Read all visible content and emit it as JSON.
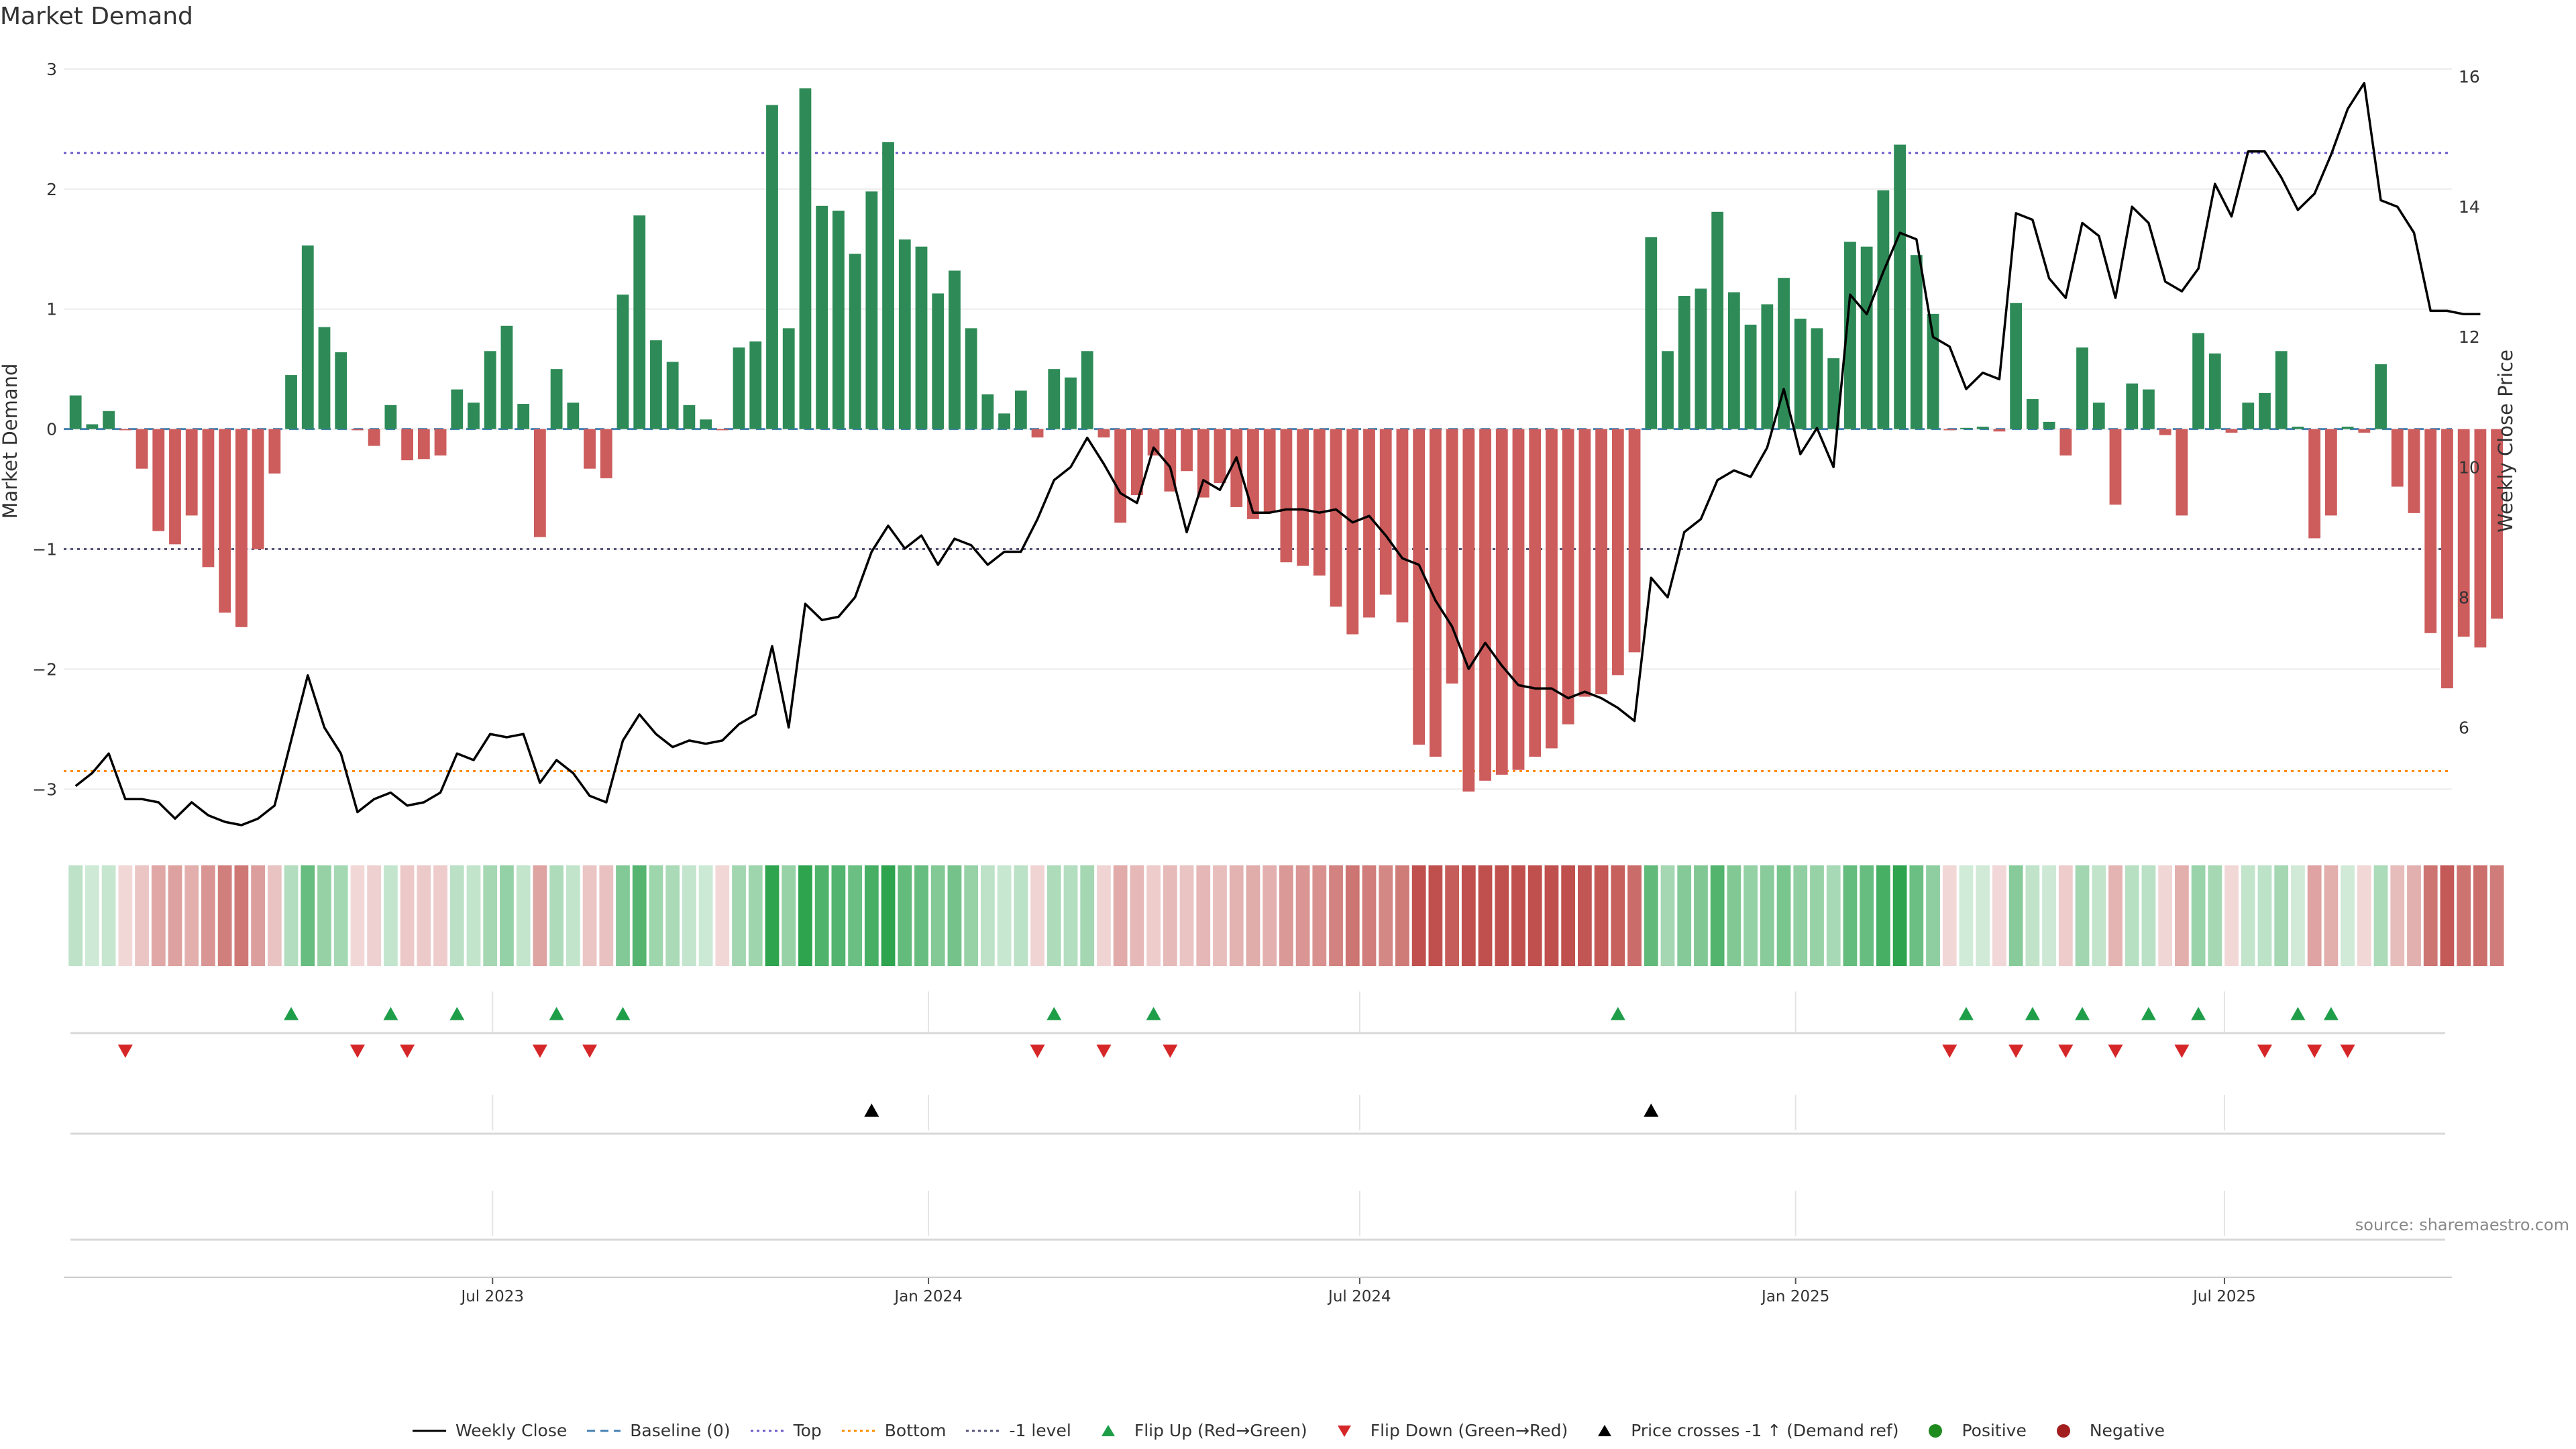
{
  "title": "Market Demand",
  "source": "source: sharemaestro.com",
  "colors": {
    "positive_bar": "#2e8b57",
    "negative_bar": "#cd5c5c",
    "price_line": "#000000",
    "top_line": "#6a5acd",
    "bottom_line": "#ff8c00",
    "minus1_line": "#555577",
    "baseline": "#4682b4",
    "flip_up": "#1f9e4a",
    "flip_down": "#d62728",
    "cross": "#000000",
    "positive_dot": "#1f8b1f",
    "negative_dot": "#a31f1f"
  },
  "legend": [
    {
      "label": "Weekly Close",
      "icon": "solid-line"
    },
    {
      "label": "Baseline (0)",
      "icon": "dashed-line"
    },
    {
      "label": "Top",
      "icon": "dotted-line-purple"
    },
    {
      "label": "Bottom",
      "icon": "dotted-line-orange"
    },
    {
      "label": "-1 level",
      "icon": "dotted-line-gray"
    },
    {
      "label": "Flip Up (Red→Green)",
      "icon": "triangle-up-green"
    },
    {
      "label": "Flip Down (Green→Red)",
      "icon": "triangle-down-red"
    },
    {
      "label": "Price crosses -1 ↑ (Demand ref)",
      "icon": "triangle-up-black"
    },
    {
      "label": "Positive",
      "icon": "dot-green"
    },
    {
      "label": "Negative",
      "icon": "dot-red"
    }
  ],
  "chart_data": {
    "type": "bar",
    "start_date": "2023-01-06",
    "frequency": "weekly",
    "ylabel": "Market Demand",
    "y2label": "Weekly Close Price",
    "ylim": [
      -3.3,
      3.1
    ],
    "y2lim": [
      4.5,
      16.3
    ],
    "yticks": [
      3,
      2,
      1,
      0,
      -1,
      -2,
      -3
    ],
    "y2ticks": [
      16,
      14,
      12,
      10,
      8,
      6
    ],
    "xticks": [
      "Jul 2023",
      "Jan 2024",
      "Jul 2024",
      "Jan 2025",
      "Jul 2025"
    ],
    "top_level": 2.3,
    "bottom_level": -2.85,
    "minus1_level": -1.0,
    "demand": [
      0.28,
      0.04,
      0.15,
      -0.01,
      -0.33,
      -0.85,
      -0.96,
      -0.72,
      -1.15,
      -1.53,
      -1.65,
      -1.0,
      -0.37,
      0.45,
      1.53,
      0.85,
      0.64,
      -0.01,
      -0.14,
      0.2,
      -0.26,
      -0.25,
      -0.22,
      0.33,
      0.22,
      0.65,
      0.86,
      0.21,
      -0.9,
      0.5,
      0.22,
      -0.33,
      -0.41,
      1.12,
      1.78,
      0.74,
      0.56,
      0.2,
      0.08,
      -0.01,
      0.68,
      0.73,
      2.7,
      0.84,
      2.84,
      1.86,
      1.82,
      1.46,
      1.98,
      2.39,
      1.58,
      1.52,
      1.13,
      1.32,
      0.84,
      0.29,
      0.13,
      0.32,
      -0.07,
      0.5,
      0.43,
      0.65,
      -0.07,
      -0.78,
      -0.55,
      -0.22,
      -0.52,
      -0.35,
      -0.57,
      -0.45,
      -0.65,
      -0.75,
      -0.69,
      -1.11,
      -1.14,
      -1.22,
      -1.48,
      -1.71,
      -1.57,
      -1.38,
      -1.61,
      -2.63,
      -2.73,
      -2.12,
      -3.02,
      -2.93,
      -2.88,
      -2.84,
      -2.73,
      -2.66,
      -2.46,
      -2.23,
      -2.21,
      -2.05,
      -1.86,
      1.6,
      0.65,
      1.11,
      1.17,
      1.81,
      1.14,
      0.87,
      1.04,
      1.26,
      0.92,
      0.84,
      0.59,
      1.56,
      1.52,
      1.99,
      2.37,
      1.45,
      0.96,
      -0.01,
      0.01,
      0.02,
      -0.02,
      1.05,
      0.25,
      0.06,
      -0.22,
      0.68,
      0.22,
      -0.63,
      0.38,
      0.33,
      -0.05,
      -0.72,
      0.8,
      0.63,
      -0.03,
      0.22,
      0.3,
      0.65,
      0.02,
      -0.91,
      -0.72,
      0.02,
      -0.03,
      0.54,
      -0.48,
      -0.7,
      -1.7,
      -2.16,
      -1.73,
      -1.82,
      -1.58
    ],
    "close": [
      5.1,
      5.3,
      5.6,
      4.9,
      4.9,
      4.85,
      4.6,
      4.85,
      4.65,
      4.55,
      4.5,
      4.6,
      4.8,
      5.8,
      6.8,
      6.0,
      5.6,
      4.7,
      4.9,
      5.0,
      4.8,
      4.85,
      5.0,
      5.6,
      5.5,
      5.9,
      5.85,
      5.9,
      5.15,
      5.5,
      5.3,
      4.95,
      4.85,
      5.8,
      6.2,
      5.9,
      5.7,
      5.8,
      5.75,
      5.8,
      6.05,
      6.2,
      7.25,
      6.0,
      7.9,
      7.65,
      7.7,
      8.0,
      8.7,
      9.1,
      8.75,
      8.95,
      8.5,
      8.9,
      8.8,
      8.5,
      8.7,
      8.7,
      9.2,
      9.8,
      10.0,
      10.45,
      10.05,
      9.6,
      9.45,
      10.3,
      10.0,
      9.0,
      9.8,
      9.65,
      10.15,
      9.3,
      9.3,
      9.35,
      9.35,
      9.3,
      9.35,
      9.15,
      9.25,
      8.95,
      8.6,
      8.5,
      7.95,
      7.55,
      6.9,
      7.3,
      6.95,
      6.65,
      6.6,
      6.6,
      6.45,
      6.55,
      6.45,
      6.3,
      6.1,
      8.3,
      8.0,
      9.0,
      9.2,
      9.8,
      9.95,
      9.85,
      10.3,
      11.2,
      10.2,
      10.6,
      10.0,
      12.65,
      12.35,
      13.0,
      13.6,
      13.5,
      12.0,
      11.85,
      11.2,
      11.45,
      11.35,
      13.9,
      13.8,
      12.9,
      12.6,
      13.75,
      13.55,
      12.6,
      14.0,
      13.75,
      12.85,
      12.7,
      13.05,
      14.35,
      13.85,
      14.85,
      14.85,
      14.45,
      13.95,
      14.2,
      14.8,
      15.5,
      15.9,
      14.1,
      14.0,
      13.6,
      12.4,
      12.4,
      12.35,
      12.35
    ],
    "flip_up_weeks": [
      13,
      19,
      23,
      29,
      33,
      59,
      65,
      93,
      114,
      118,
      121,
      125,
      128,
      134,
      136
    ],
    "flip_down_weeks": [
      3,
      17,
      20,
      28,
      31,
      58,
      62,
      66,
      113,
      117,
      120,
      123,
      127,
      132,
      135,
      137
    ],
    "price_cross_weeks": [
      48,
      95
    ]
  }
}
